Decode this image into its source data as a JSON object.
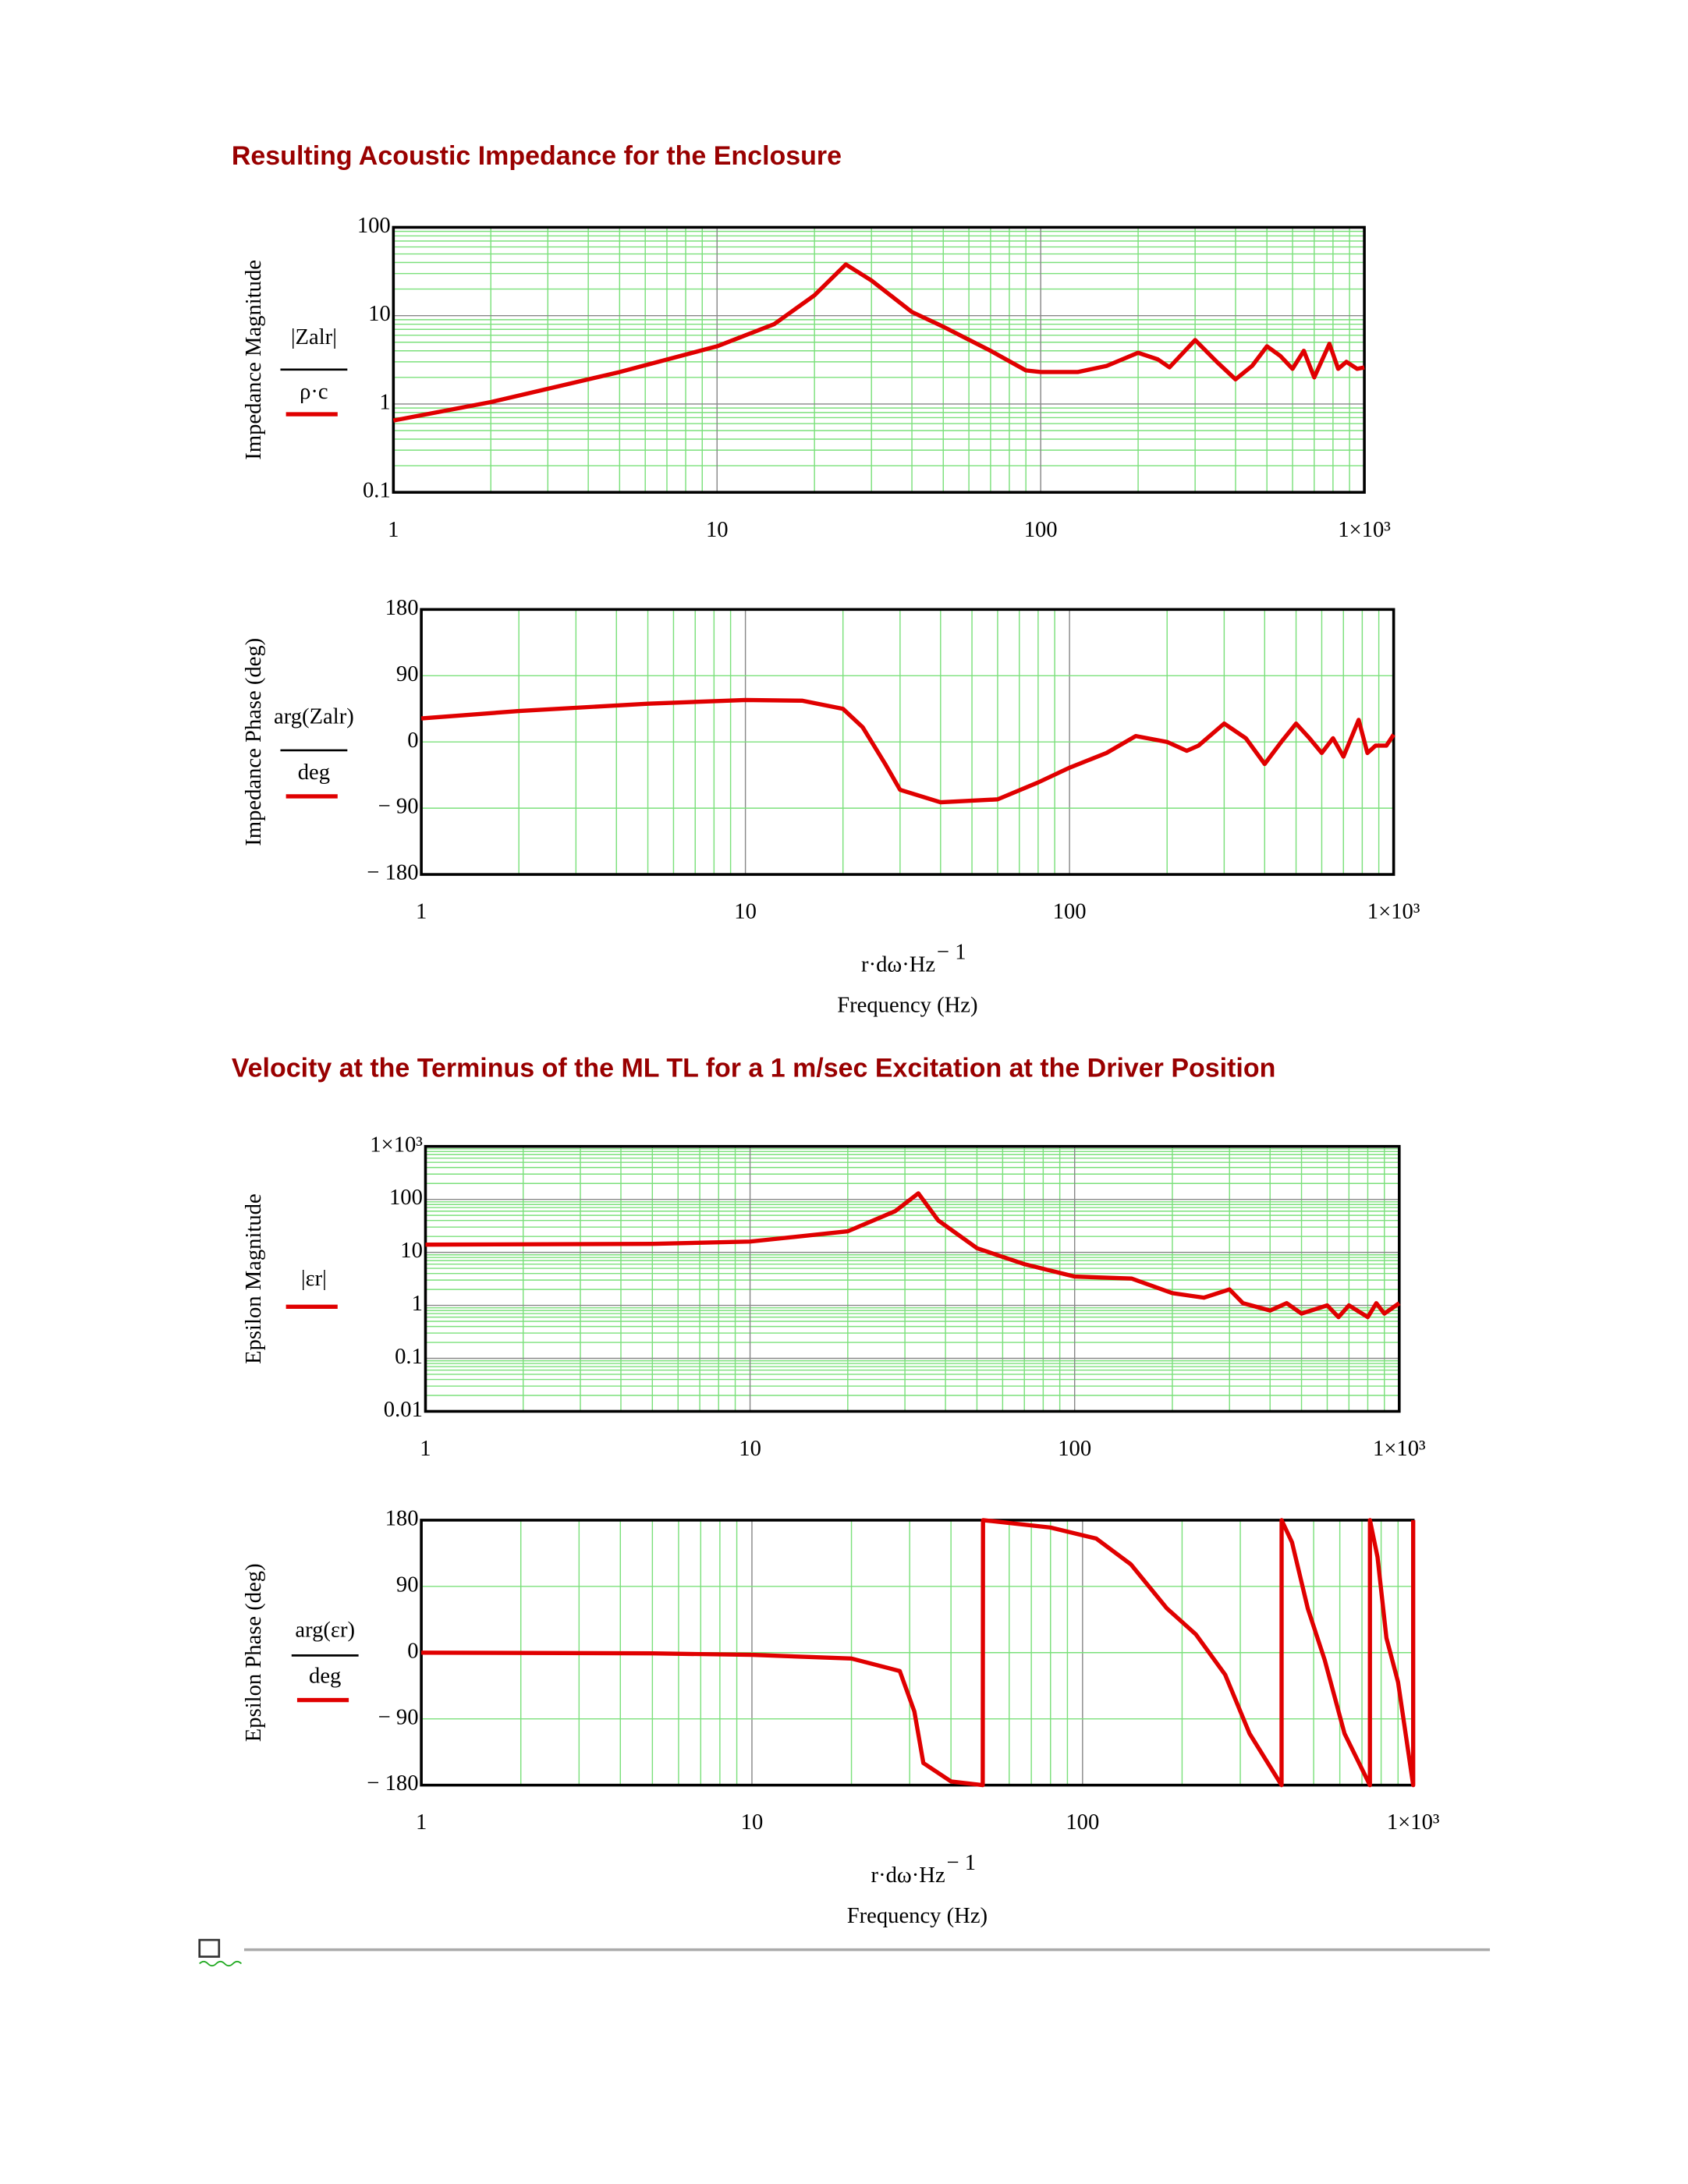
{
  "headings": [
    "Resulting Acoustic Impedance for the Enclosure",
    "Velocity at the Terminus of the ML TL for a 1 m/sec Excitation at the Driver Position"
  ],
  "chart_data": [
    {
      "type": "line",
      "log_x": true,
      "log_y": true,
      "ylabel": "Impedance Magnitude",
      "expr_top": "|Zalr|",
      "expr_bottom": "ρ·c",
      "xlim": [
        1,
        1000
      ],
      "xticks": [
        1,
        10,
        100,
        {
          "value": 1000,
          "label": "1×10³"
        }
      ],
      "ylim": [
        0.1,
        100
      ],
      "yticks": [
        0.1,
        1,
        10,
        100
      ],
      "x": [
        1,
        2,
        5,
        10,
        15,
        20,
        25,
        30,
        40,
        50,
        70,
        90,
        100,
        130,
        160,
        200,
        230,
        250,
        300,
        350,
        400,
        450,
        500,
        550,
        600,
        650,
        700,
        780,
        830,
        880,
        950,
        1000
      ],
      "series": [
        {
          "color": "#e00000",
          "values": [
            0.65,
            1.05,
            2.3,
            4.5,
            8,
            17,
            38,
            25,
            11,
            7.5,
            4,
            2.4,
            2.3,
            2.3,
            2.7,
            3.8,
            3.2,
            2.6,
            5.3,
            3,
            1.9,
            2.7,
            4.5,
            3.5,
            2.5,
            4,
            2,
            4.8,
            2.5,
            3,
            2.5,
            2.6
          ]
        }
      ]
    },
    {
      "type": "line",
      "log_x": true,
      "log_y": false,
      "ylabel": "Impedance Phase (deg)",
      "expr_top": "arg(Zalr)",
      "expr_bottom": "deg",
      "x_unit": "r·dω·Hz",
      "x_unit_exp": "− 1",
      "xlabel": "Frequency (Hz)",
      "xlim": [
        1,
        1000
      ],
      "xticks": [
        1,
        10,
        100,
        {
          "value": 1000,
          "label": "1×10³"
        }
      ],
      "ylim": [
        -180,
        180
      ],
      "yticks": [
        {
          "value": -180,
          "label": "− 180"
        },
        {
          "value": -90,
          "label": "− 90"
        },
        0,
        90,
        180
      ],
      "x": [
        1,
        2,
        5,
        10,
        15,
        20,
        23,
        27,
        30,
        40,
        60,
        80,
        100,
        130,
        160,
        200,
        230,
        250,
        300,
        350,
        400,
        450,
        500,
        550,
        600,
        650,
        700,
        780,
        830,
        880,
        950,
        1000
      ],
      "series": [
        {
          "color": "#e00000",
          "values": [
            32,
            42,
            52,
            57,
            56,
            45,
            20,
            -30,
            -65,
            -82,
            -78,
            -55,
            -35,
            -15,
            8,
            0,
            -12,
            -5,
            25,
            5,
            -30,
            0,
            25,
            5,
            -15,
            5,
            -20,
            30,
            -15,
            -5,
            -5,
            10
          ]
        }
      ]
    },
    {
      "type": "line",
      "log_x": true,
      "log_y": true,
      "ylabel": "Epsilon Magnitude",
      "expr_top": "|εr|",
      "xlim": [
        1,
        1000
      ],
      "xticks": [
        1,
        10,
        100,
        {
          "value": 1000,
          "label": "1×10³"
        }
      ],
      "ylim": [
        0.01,
        1000
      ],
      "yticks": [
        0.01,
        0.1,
        1,
        10,
        100,
        {
          "value": 1000,
          "label": "1×10³"
        }
      ],
      "x": [
        1,
        5,
        10,
        20,
        28,
        33,
        38,
        50,
        70,
        100,
        150,
        200,
        250,
        300,
        330,
        400,
        450,
        500,
        600,
        650,
        700,
        800,
        850,
        900,
        1000
      ],
      "series": [
        {
          "color": "#e00000",
          "values": [
            14,
            14.5,
            16,
            25,
            60,
            130,
            40,
            12,
            6,
            3.5,
            3.2,
            1.7,
            1.4,
            2,
            1.1,
            0.8,
            1.1,
            0.7,
            1,
            0.6,
            1,
            0.6,
            1.1,
            0.7,
            1.1
          ]
        }
      ]
    },
    {
      "type": "line",
      "log_x": true,
      "log_y": false,
      "ylabel": "Epsilon Phase (deg)",
      "expr_top": "arg(εr)",
      "expr_bottom": "deg",
      "x_unit": "r·dω·Hz",
      "x_unit_exp": "− 1",
      "xlabel": "Frequency (Hz)",
      "xlim": [
        1,
        1000
      ],
      "xticks": [
        1,
        10,
        100,
        {
          "value": 1000,
          "label": "1×10³"
        }
      ],
      "ylim": [
        -180,
        180
      ],
      "yticks": [
        {
          "value": -180,
          "label": "− 180"
        },
        {
          "value": -90,
          "label": "− 90"
        },
        0,
        90,
        180
      ],
      "x": [
        1,
        5,
        10,
        20,
        28,
        31,
        33,
        40,
        49.9,
        50,
        80,
        110,
        140,
        180,
        220,
        270,
        320,
        399.9,
        400,
        430,
        480,
        540,
        620,
        739.9,
        740,
        780,
        830,
        900,
        1000,
        1000
      ],
      "series": [
        {
          "color": "#e00000",
          "values": [
            0,
            -1,
            -3,
            -8,
            -25,
            -80,
            -150,
            -175,
            -180,
            180,
            170,
            155,
            120,
            60,
            25,
            -30,
            -110,
            -180,
            180,
            150,
            60,
            -10,
            -110,
            -180,
            180,
            130,
            20,
            -40,
            -180,
            180
          ]
        }
      ]
    }
  ]
}
